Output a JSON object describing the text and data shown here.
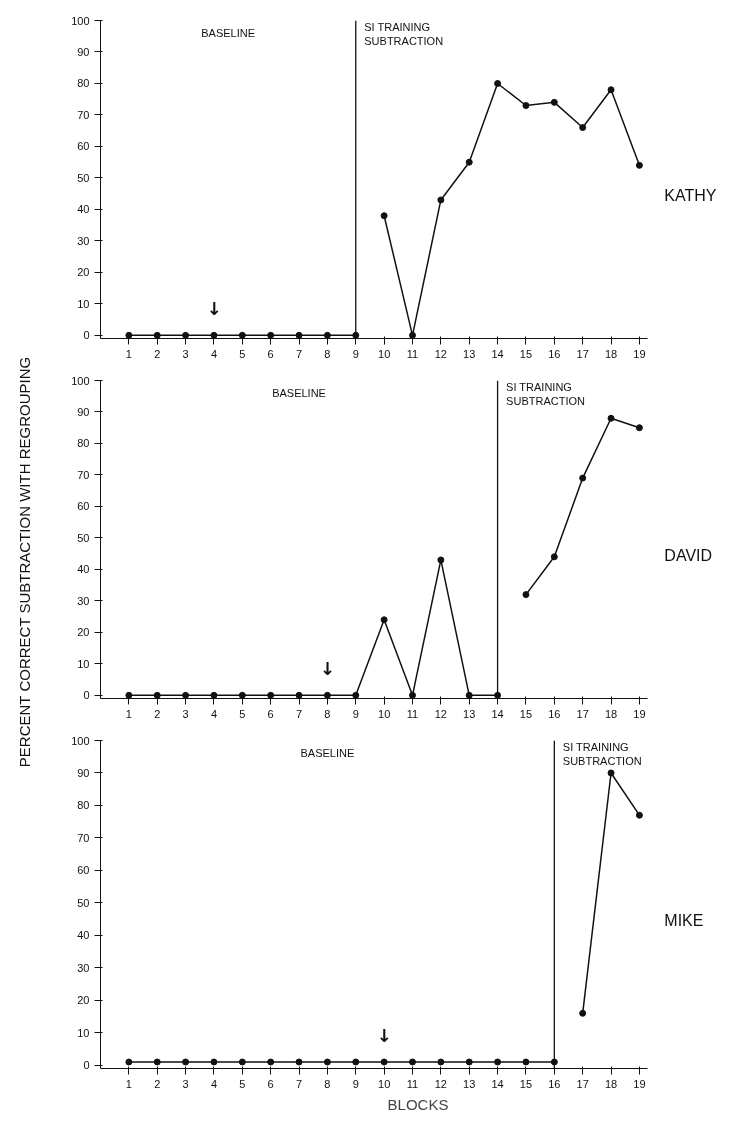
{
  "chart_data": [
    {
      "type": "line",
      "marker": "circle",
      "grid": false,
      "xlim": [
        0,
        19.3
      ],
      "ylim": [
        -1,
        100
      ],
      "xticks": [
        1,
        2,
        3,
        4,
        5,
        6,
        7,
        8,
        9,
        10,
        11,
        12,
        13,
        14,
        15,
        16,
        17,
        18,
        19
      ],
      "yticks": [
        0,
        10,
        20,
        30,
        40,
        50,
        60,
        70,
        80,
        90,
        100
      ],
      "series": [
        {
          "color": "#111111",
          "x": [
            1,
            2,
            3,
            4,
            5,
            6,
            7,
            8,
            9
          ],
          "values": [
            0,
            0,
            0,
            0,
            0,
            0,
            0,
            0,
            0
          ]
        },
        {
          "name": "KATHY",
          "color": "#111111",
          "x": [
            10,
            11,
            12,
            13,
            14,
            15,
            16,
            17,
            18,
            19
          ],
          "values": [
            38,
            0,
            43,
            55,
            80,
            73,
            74,
            66,
            78,
            54
          ]
        }
      ],
      "ref_lines": [
        {
          "axis": "x",
          "value": 9,
          "color": "#111111"
        }
      ],
      "annotations": [
        "BASELINE",
        "SI TRAINING\nSUBTRACTION",
        {
          "text": "↓",
          "x": 4,
          "y": 0
        }
      ]
    },
    {
      "type": "line",
      "ylabel": "PERCENT CORRECT SUBTRACTION WITH REGROUPING",
      "marker": "circle",
      "grid": false,
      "xlim": [
        0,
        19.3
      ],
      "ylim": [
        -1,
        100
      ],
      "xticks": [
        1,
        2,
        3,
        4,
        5,
        6,
        7,
        8,
        9,
        10,
        11,
        12,
        13,
        14,
        15,
        16,
        17,
        18,
        19
      ],
      "yticks": [
        0,
        10,
        20,
        30,
        40,
        50,
        60,
        70,
        80,
        90,
        100
      ],
      "series": [
        {
          "color": "#111111",
          "x": [
            1,
            2,
            3,
            4,
            5,
            6,
            7,
            8,
            9,
            10,
            11,
            12,
            13,
            14
          ],
          "values": [
            0,
            0,
            0,
            0,
            0,
            0,
            0,
            0,
            0,
            24,
            0,
            43,
            0,
            0
          ]
        },
        {
          "name": "DAVID",
          "color": "#111111",
          "x": [
            15,
            16,
            17,
            18,
            19
          ],
          "values": [
            32,
            44,
            69,
            88,
            85
          ]
        }
      ],
      "ref_lines": [
        {
          "axis": "x",
          "value": 14,
          "color": "#111111"
        }
      ],
      "annotations": [
        "BASELINE",
        "SI TRAINING\nSUBTRACTION",
        {
          "text": "↓",
          "x": 8,
          "y": 0
        }
      ]
    },
    {
      "type": "line",
      "xlabel": "BLOCKS",
      "marker": "circle",
      "grid": false,
      "xlim": [
        0,
        19.3
      ],
      "ylim": [
        -1,
        100
      ],
      "xticks": [
        1,
        2,
        3,
        4,
        5,
        6,
        7,
        8,
        9,
        10,
        11,
        12,
        13,
        14,
        15,
        16,
        17,
        18,
        19
      ],
      "yticks": [
        0,
        10,
        20,
        30,
        40,
        50,
        60,
        70,
        80,
        90,
        100
      ],
      "series": [
        {
          "color": "#111111",
          "x": [
            1,
            2,
            3,
            4,
            5,
            6,
            7,
            8,
            9,
            10,
            11,
            12,
            13,
            14,
            15,
            16
          ],
          "values": [
            1,
            1,
            1,
            1,
            1,
            1,
            1,
            1,
            1,
            1,
            1,
            1,
            1,
            1,
            1,
            1
          ]
        },
        {
          "name": "MIKE",
          "color": "#111111",
          "x": [
            17,
            18,
            19
          ],
          "values": [
            16,
            90,
            77
          ]
        }
      ],
      "ref_lines": [
        {
          "axis": "x",
          "value": 16,
          "color": "#111111"
        }
      ],
      "annotations": [
        "BASELINE",
        "SI TRAINING\nSUBTRACTION",
        {
          "text": "↓",
          "x": 10,
          "y": 1
        }
      ]
    }
  ]
}
